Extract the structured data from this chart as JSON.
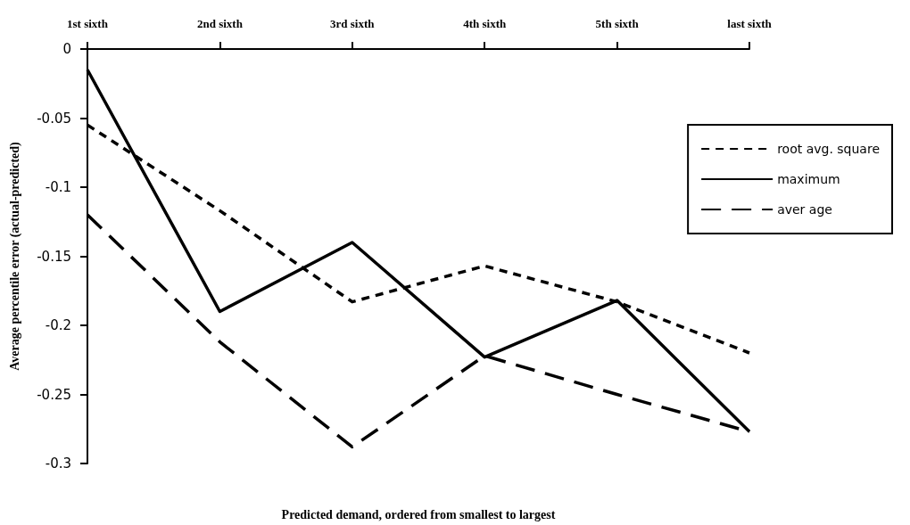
{
  "chart_data": {
    "type": "line",
    "xlabel": "Predicted demand, ordered from smallest to largest",
    "ylabel": "Average percentile error (actual-predicted)",
    "categories": [
      "1st sixth",
      "2nd sixth",
      "3rd sixth",
      "4th sixth",
      "5th sixth",
      "last sixth"
    ],
    "series": [
      {
        "name": "root avg. square",
        "color": "#000000",
        "line_style": "dotted",
        "values": [
          -0.055,
          -0.117,
          -0.183,
          -0.157,
          -0.183,
          -0.22
        ]
      },
      {
        "name": "maximum",
        "color": "#000000",
        "line_style": "solid",
        "values": [
          -0.015,
          -0.19,
          -0.14,
          -0.223,
          -0.182,
          -0.277
        ]
      },
      {
        "name": "aver age",
        "color": "#000000",
        "line_style": "dashed",
        "values": [
          -0.12,
          -0.212,
          -0.288,
          -0.222,
          -0.25,
          -0.277
        ]
      }
    ],
    "ylim": [
      -0.3,
      0
    ],
    "yticks": [
      0,
      -0.05,
      -0.1,
      -0.15,
      -0.2,
      -0.25,
      -0.3
    ],
    "grid": false,
    "legend": "top right",
    "marker": "none"
  }
}
